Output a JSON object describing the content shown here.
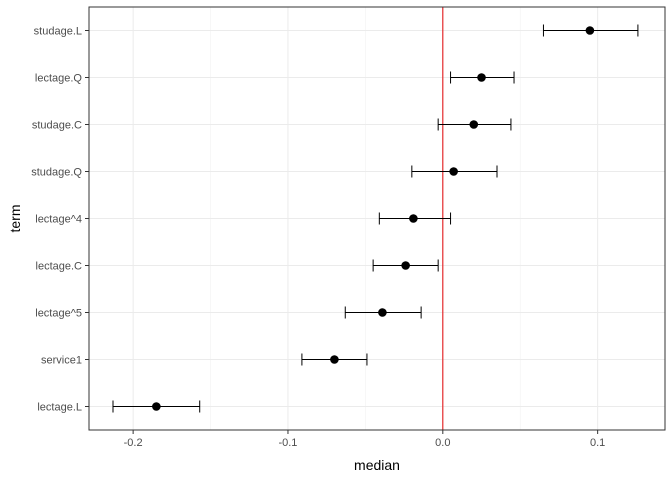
{
  "chart_data": {
    "type": "scatter",
    "title": "",
    "xlabel": "median",
    "ylabel": "term",
    "xlim": [
      -0.2285,
      0.1435
    ],
    "x_ticks": [
      -0.2,
      -0.1,
      0.0,
      0.1
    ],
    "x_tick_labels": [
      "-0.2",
      "-0.1",
      "0.0",
      "0.1"
    ],
    "grid": true,
    "legend": "none",
    "reference_line": {
      "x": 0,
      "color": "#e41a1c"
    },
    "point_color": "#000000",
    "categories": [
      "lectage.L",
      "service1",
      "lectage^5",
      "lectage.C",
      "lectage^4",
      "studage.Q",
      "studage.C",
      "lectage.Q",
      "studage.L"
    ],
    "series": [
      {
        "values": [
          -0.185,
          -0.07,
          -0.039,
          -0.024,
          -0.019,
          0.007,
          0.02,
          0.025,
          0.095
        ],
        "lower": [
          -0.213,
          -0.091,
          -0.063,
          -0.045,
          -0.041,
          -0.02,
          -0.003,
          0.005,
          0.065
        ],
        "upper": [
          -0.157,
          -0.049,
          -0.014,
          -0.003,
          0.005,
          0.035,
          0.044,
          0.046,
          0.126
        ]
      }
    ]
  }
}
